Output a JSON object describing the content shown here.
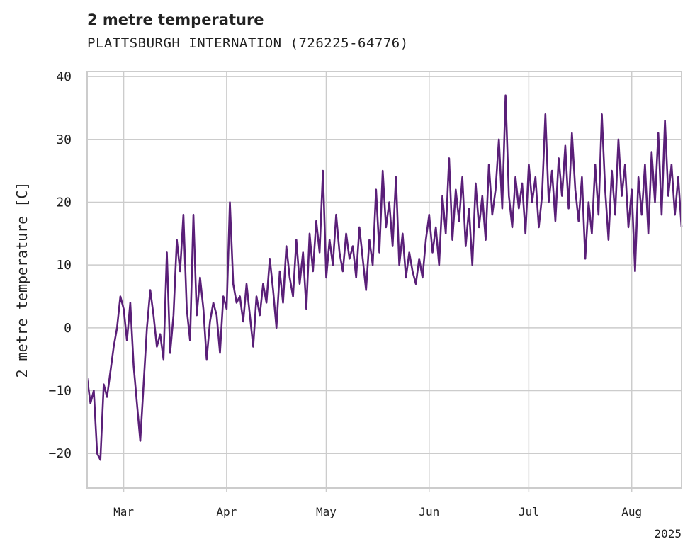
{
  "chart_data": {
    "type": "line",
    "title": "2 metre temperature",
    "subtitle": "PLATTSBURGH INTERNATION (726225-64776)",
    "xlabel": "",
    "ylabel": "2 metre temperature [C]",
    "x_range": [
      "2025-02-18",
      "2025-08-16"
    ],
    "ylim": [
      -25.5,
      40.8
    ],
    "y_ticks": [
      -20,
      -10,
      0,
      10,
      20,
      30,
      40
    ],
    "y_tick_labels": [
      "−20",
      "−10",
      "0",
      "10",
      "20",
      "30",
      "40"
    ],
    "x_ticks": [
      {
        "date": "2025-03-01",
        "label": "Mar"
      },
      {
        "date": "2025-04-01",
        "label": "Apr"
      },
      {
        "date": "2025-05-01",
        "label": "May"
      },
      {
        "date": "2025-06-01",
        "label": "Jun"
      },
      {
        "date": "2025-07-01",
        "label": "Jul"
      },
      {
        "date": "2025-08-01",
        "label": "Aug"
      }
    ],
    "x_offset_label": "2025",
    "grid": true,
    "series": [
      {
        "color": "#5a1f78",
        "points": [
          [
            "2025-02-18",
            -8
          ],
          [
            "2025-02-19",
            -12
          ],
          [
            "2025-02-20",
            -10
          ],
          [
            "2025-02-21",
            -20
          ],
          [
            "2025-02-22",
            -21
          ],
          [
            "2025-02-23",
            -9
          ],
          [
            "2025-02-24",
            -11
          ],
          [
            "2025-02-25",
            -7
          ],
          [
            "2025-02-26",
            -3
          ],
          [
            "2025-02-27",
            0
          ],
          [
            "2025-02-28",
            5
          ],
          [
            "2025-03-01",
            3
          ],
          [
            "2025-03-02",
            -2
          ],
          [
            "2025-03-03",
            4
          ],
          [
            "2025-03-04",
            -6
          ],
          [
            "2025-03-05",
            -12
          ],
          [
            "2025-03-06",
            -18
          ],
          [
            "2025-03-07",
            -9
          ],
          [
            "2025-03-08",
            0
          ],
          [
            "2025-03-09",
            6
          ],
          [
            "2025-03-10",
            2
          ],
          [
            "2025-03-11",
            -3
          ],
          [
            "2025-03-12",
            -1
          ],
          [
            "2025-03-13",
            -5
          ],
          [
            "2025-03-14",
            12
          ],
          [
            "2025-03-15",
            -4
          ],
          [
            "2025-03-16",
            2
          ],
          [
            "2025-03-17",
            14
          ],
          [
            "2025-03-18",
            9
          ],
          [
            "2025-03-19",
            18
          ],
          [
            "2025-03-20",
            3
          ],
          [
            "2025-03-21",
            -2
          ],
          [
            "2025-03-22",
            18
          ],
          [
            "2025-03-23",
            2
          ],
          [
            "2025-03-24",
            8
          ],
          [
            "2025-03-25",
            3
          ],
          [
            "2025-03-26",
            -5
          ],
          [
            "2025-03-27",
            1
          ],
          [
            "2025-03-28",
            4
          ],
          [
            "2025-03-29",
            2
          ],
          [
            "2025-03-30",
            -4
          ],
          [
            "2025-03-31",
            5
          ],
          [
            "2025-04-01",
            3
          ],
          [
            "2025-04-02",
            20
          ],
          [
            "2025-04-03",
            7
          ],
          [
            "2025-04-04",
            4
          ],
          [
            "2025-04-05",
            5
          ],
          [
            "2025-04-06",
            1
          ],
          [
            "2025-04-07",
            7
          ],
          [
            "2025-04-08",
            2
          ],
          [
            "2025-04-09",
            -3
          ],
          [
            "2025-04-10",
            5
          ],
          [
            "2025-04-11",
            2
          ],
          [
            "2025-04-12",
            7
          ],
          [
            "2025-04-13",
            4
          ],
          [
            "2025-04-14",
            11
          ],
          [
            "2025-04-15",
            6
          ],
          [
            "2025-04-16",
            0
          ],
          [
            "2025-04-17",
            9
          ],
          [
            "2025-04-18",
            4
          ],
          [
            "2025-04-19",
            13
          ],
          [
            "2025-04-20",
            8
          ],
          [
            "2025-04-21",
            5
          ],
          [
            "2025-04-22",
            14
          ],
          [
            "2025-04-23",
            7
          ],
          [
            "2025-04-24",
            12
          ],
          [
            "2025-04-25",
            3
          ],
          [
            "2025-04-26",
            15
          ],
          [
            "2025-04-27",
            9
          ],
          [
            "2025-04-28",
            17
          ],
          [
            "2025-04-29",
            12
          ],
          [
            "2025-04-30",
            25
          ],
          [
            "2025-05-01",
            8
          ],
          [
            "2025-05-02",
            14
          ],
          [
            "2025-05-03",
            10
          ],
          [
            "2025-05-04",
            18
          ],
          [
            "2025-05-05",
            12
          ],
          [
            "2025-05-06",
            9
          ],
          [
            "2025-05-07",
            15
          ],
          [
            "2025-05-08",
            11
          ],
          [
            "2025-05-09",
            13
          ],
          [
            "2025-05-10",
            8
          ],
          [
            "2025-05-11",
            16
          ],
          [
            "2025-05-12",
            11
          ],
          [
            "2025-05-13",
            6
          ],
          [
            "2025-05-14",
            14
          ],
          [
            "2025-05-15",
            10
          ],
          [
            "2025-05-16",
            22
          ],
          [
            "2025-05-17",
            12
          ],
          [
            "2025-05-18",
            25
          ],
          [
            "2025-05-19",
            16
          ],
          [
            "2025-05-20",
            20
          ],
          [
            "2025-05-21",
            13
          ],
          [
            "2025-05-22",
            24
          ],
          [
            "2025-05-23",
            10
          ],
          [
            "2025-05-24",
            15
          ],
          [
            "2025-05-25",
            8
          ],
          [
            "2025-05-26",
            12
          ],
          [
            "2025-05-27",
            9
          ],
          [
            "2025-05-28",
            7
          ],
          [
            "2025-05-29",
            11
          ],
          [
            "2025-05-30",
            8
          ],
          [
            "2025-05-31",
            14
          ],
          [
            "2025-06-01",
            18
          ],
          [
            "2025-06-02",
            12
          ],
          [
            "2025-06-03",
            16
          ],
          [
            "2025-06-04",
            10
          ],
          [
            "2025-06-05",
            21
          ],
          [
            "2025-06-06",
            15
          ],
          [
            "2025-06-07",
            27
          ],
          [
            "2025-06-08",
            14
          ],
          [
            "2025-06-09",
            22
          ],
          [
            "2025-06-10",
            17
          ],
          [
            "2025-06-11",
            24
          ],
          [
            "2025-06-12",
            13
          ],
          [
            "2025-06-13",
            19
          ],
          [
            "2025-06-14",
            10
          ],
          [
            "2025-06-15",
            23
          ],
          [
            "2025-06-16",
            16
          ],
          [
            "2025-06-17",
            21
          ],
          [
            "2025-06-18",
            14
          ],
          [
            "2025-06-19",
            26
          ],
          [
            "2025-06-20",
            18
          ],
          [
            "2025-06-21",
            22
          ],
          [
            "2025-06-22",
            30
          ],
          [
            "2025-06-23",
            19
          ],
          [
            "2025-06-24",
            37
          ],
          [
            "2025-06-25",
            21
          ],
          [
            "2025-06-26",
            16
          ],
          [
            "2025-06-27",
            24
          ],
          [
            "2025-06-28",
            19
          ],
          [
            "2025-06-29",
            23
          ],
          [
            "2025-06-30",
            15
          ],
          [
            "2025-07-01",
            26
          ],
          [
            "2025-07-02",
            20
          ],
          [
            "2025-07-03",
            24
          ],
          [
            "2025-07-04",
            16
          ],
          [
            "2025-07-05",
            21
          ],
          [
            "2025-07-06",
            34
          ],
          [
            "2025-07-07",
            20
          ],
          [
            "2025-07-08",
            25
          ],
          [
            "2025-07-09",
            17
          ],
          [
            "2025-07-10",
            27
          ],
          [
            "2025-07-11",
            21
          ],
          [
            "2025-07-12",
            29
          ],
          [
            "2025-07-13",
            19
          ],
          [
            "2025-07-14",
            31
          ],
          [
            "2025-07-15",
            22
          ],
          [
            "2025-07-16",
            17
          ],
          [
            "2025-07-17",
            24
          ],
          [
            "2025-07-18",
            11
          ],
          [
            "2025-07-19",
            20
          ],
          [
            "2025-07-20",
            15
          ],
          [
            "2025-07-21",
            26
          ],
          [
            "2025-07-22",
            18
          ],
          [
            "2025-07-23",
            34
          ],
          [
            "2025-07-24",
            22
          ],
          [
            "2025-07-25",
            14
          ],
          [
            "2025-07-26",
            25
          ],
          [
            "2025-07-27",
            18
          ],
          [
            "2025-07-28",
            30
          ],
          [
            "2025-07-29",
            21
          ],
          [
            "2025-07-30",
            26
          ],
          [
            "2025-07-31",
            16
          ],
          [
            "2025-08-01",
            22
          ],
          [
            "2025-08-02",
            9
          ],
          [
            "2025-08-03",
            24
          ],
          [
            "2025-08-04",
            18
          ],
          [
            "2025-08-05",
            26
          ],
          [
            "2025-08-06",
            15
          ],
          [
            "2025-08-07",
            28
          ],
          [
            "2025-08-08",
            20
          ],
          [
            "2025-08-09",
            31
          ],
          [
            "2025-08-10",
            18
          ],
          [
            "2025-08-11",
            33
          ],
          [
            "2025-08-12",
            21
          ],
          [
            "2025-08-13",
            26
          ],
          [
            "2025-08-14",
            18
          ],
          [
            "2025-08-15",
            24
          ],
          [
            "2025-08-16",
            16
          ]
        ]
      }
    ]
  }
}
